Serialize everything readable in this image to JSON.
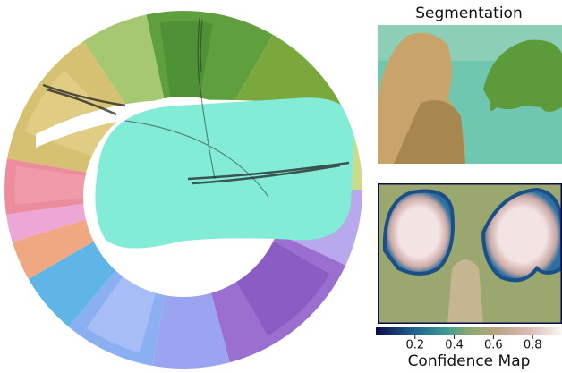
{
  "segmentation": {
    "title": "Segmentation"
  },
  "confidence_map": {
    "title": "Confidence Map",
    "colorbar": {
      "lim": [
        0,
        0.95
      ],
      "ticks": [
        0.2,
        0.4,
        0.6,
        0.8
      ]
    }
  }
}
